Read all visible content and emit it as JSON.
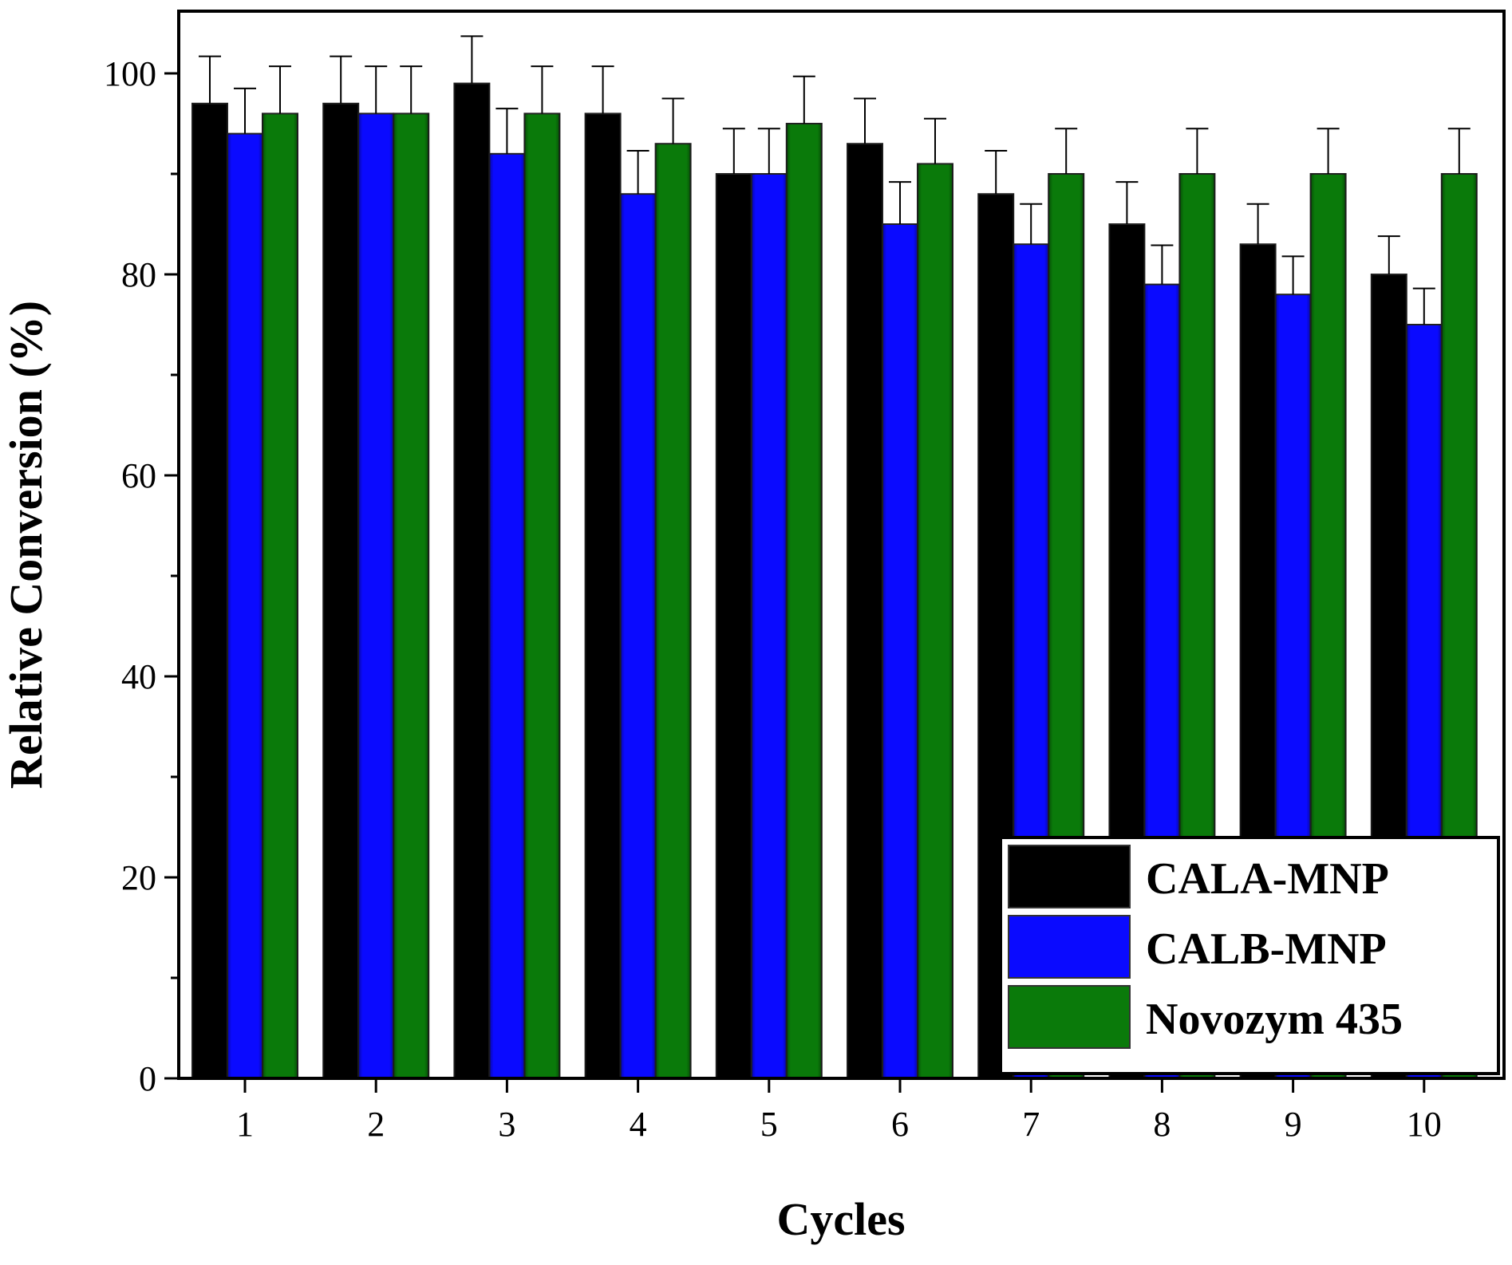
{
  "chart_data": {
    "type": "bar",
    "title": "",
    "xlabel": "Cycles",
    "ylabel": "Relative Conversion (%)",
    "ylim": [
      0,
      105
    ],
    "yticks": [
      0,
      20,
      40,
      60,
      80,
      100
    ],
    "categories": [
      "1",
      "2",
      "3",
      "4",
      "5",
      "6",
      "7",
      "8",
      "9",
      "10"
    ],
    "series": [
      {
        "name": "CALA-MNP",
        "color": "#000000",
        "values": [
          97,
          97,
          99,
          96,
          90,
          93,
          88,
          85,
          83,
          80
        ],
        "errors": [
          4.7,
          4.7,
          4.7,
          4.7,
          4.5,
          4.5,
          4.3,
          4.2,
          4.0,
          3.8
        ]
      },
      {
        "name": "CALB-MNP",
        "color": "#0a0aff",
        "values": [
          94,
          96,
          92,
          88,
          90,
          85,
          83,
          79,
          78,
          75
        ],
        "errors": [
          4.5,
          4.7,
          4.5,
          4.3,
          4.5,
          4.2,
          4.0,
          3.9,
          3.8,
          3.6
        ]
      },
      {
        "name": "Novozym 435",
        "color": "#0a7a0a",
        "values": [
          96,
          96,
          96,
          93,
          95,
          91,
          90,
          90,
          90,
          90
        ],
        "errors": [
          4.7,
          4.7,
          4.7,
          4.5,
          4.7,
          4.5,
          4.5,
          4.5,
          4.5,
          4.5
        ]
      }
    ],
    "legend": {
      "position": "bottom-right",
      "entries": [
        "CALA-MNP",
        "CALB-MNP",
        "Novozym 435"
      ]
    },
    "grid": false
  }
}
